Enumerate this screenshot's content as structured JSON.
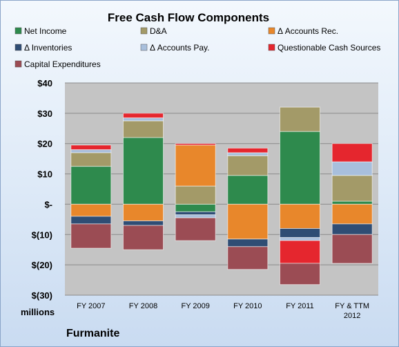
{
  "chart_data": {
    "type": "bar",
    "stacked": true,
    "title": "Free Cash Flow Components",
    "units_label": "millions",
    "brand": "Furmanite",
    "legend_placement": "top",
    "grid": true,
    "ylim": [
      -30,
      40
    ],
    "y_ticks": [
      {
        "value": 40,
        "label": "$40"
      },
      {
        "value": 30,
        "label": "$30"
      },
      {
        "value": 20,
        "label": "$20"
      },
      {
        "value": 10,
        "label": "$10"
      },
      {
        "value": 0,
        "label": "$-"
      },
      {
        "value": -10,
        "label": "$(10)"
      },
      {
        "value": -20,
        "label": "$(20)"
      },
      {
        "value": -30,
        "label": "$(30)"
      }
    ],
    "categories": [
      [
        "FY 2007"
      ],
      [
        "FY 2008"
      ],
      [
        "FY 2009"
      ],
      [
        "FY 2010"
      ],
      [
        "FY 2011"
      ],
      [
        "FY & TTM",
        "2012"
      ]
    ],
    "series": [
      {
        "name": "Net Income",
        "color": "#2e8a4d",
        "values": [
          12.5,
          22,
          -2.5,
          9.5,
          24,
          1
        ]
      },
      {
        "name": "D&A",
        "color": "#a39a68",
        "values": [
          4.5,
          5.5,
          6,
          6.5,
          8,
          8.5
        ]
      },
      {
        "name": "Δ Accounts Rec.",
        "color": "#e8872b",
        "values": [
          -4,
          -5.5,
          13.5,
          -11.5,
          -8,
          -6.5
        ]
      },
      {
        "name": "Δ Inventories",
        "color": "#2f4d74",
        "values": [
          -2.5,
          -1.5,
          -1,
          -2.5,
          -3,
          -3.5
        ]
      },
      {
        "name": "Δ Accounts Pay.",
        "color": "#a8bfdc",
        "values": [
          1,
          1,
          -1,
          1,
          -1,
          4.5
        ]
      },
      {
        "name": "Questionable Cash Sources",
        "color": "#e5262e",
        "values": [
          1.5,
          1.5,
          0.5,
          1.5,
          -7.5,
          6
        ]
      },
      {
        "name": "Capital Expenditures",
        "color": "#9b4c54",
        "values": [
          -8,
          -8,
          -7.5,
          -7.5,
          -7,
          -9.5
        ]
      }
    ]
  }
}
